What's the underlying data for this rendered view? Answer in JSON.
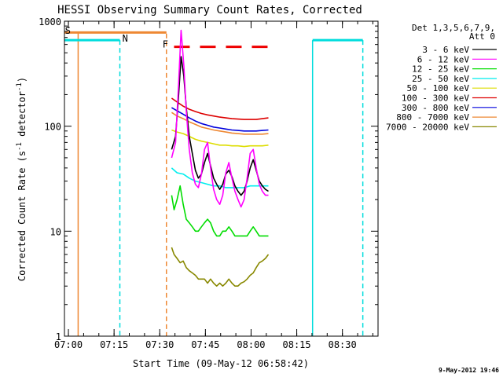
{
  "chart_data": {
    "type": "line",
    "title": "HESSI Observing Summary Count Rates, Corrected",
    "xlabel": "Start Time (09-May-12 06:58:42)",
    "ylabel": "Corrected Count Rate (s",
    "ylabel_sup1": "-1",
    "ylabel_mid": " detector",
    "ylabel_sup2": "-1",
    "ylabel_end": ")",
    "y_scale": "log",
    "ylim": [
      1,
      1000
    ],
    "xlim_minutes_after_0658_42": [
      0,
      103
    ],
    "x_ticks": [
      {
        "label": "07:00",
        "t": 1.3
      },
      {
        "label": "07:15",
        "t": 16.3
      },
      {
        "label": "07:30",
        "t": 31.3
      },
      {
        "label": "07:45",
        "t": 46.3
      },
      {
        "label": "08:00",
        "t": 61.3
      },
      {
        "label": "08:15",
        "t": 76.3
      },
      {
        "label": "08:30",
        "t": 91.3
      }
    ],
    "y_ticks": [
      {
        "label": "1",
        "v": 1
      },
      {
        "label": "10",
        "v": 10
      },
      {
        "label": "100",
        "v": 100
      },
      {
        "label": "1000",
        "v": 1000
      }
    ],
    "legend_title": [
      "Det 1,3,5,6,7,9,",
      "Att 0"
    ],
    "legend_placement": "right, outside plot",
    "series": [
      {
        "name": "3 - 6 keV",
        "color": "#000000",
        "points": [
          [
            35.2,
            60
          ],
          [
            36.5,
            80
          ],
          [
            37.5,
            200
          ],
          [
            38.3,
            460
          ],
          [
            39.2,
            300
          ],
          [
            40,
            150
          ],
          [
            41,
            80
          ],
          [
            42,
            55
          ],
          [
            43,
            38
          ],
          [
            44,
            32
          ],
          [
            45,
            35
          ],
          [
            46,
            45
          ],
          [
            47,
            55
          ],
          [
            48,
            42
          ],
          [
            49,
            32
          ],
          [
            50,
            28
          ],
          [
            51,
            25
          ],
          [
            52,
            28
          ],
          [
            53,
            35
          ],
          [
            54,
            38
          ],
          [
            55,
            33
          ],
          [
            56,
            27
          ],
          [
            57,
            24
          ],
          [
            58,
            22
          ],
          [
            59,
            24
          ],
          [
            60,
            30
          ],
          [
            61,
            40
          ],
          [
            62,
            48
          ],
          [
            63,
            38
          ],
          [
            64,
            30
          ],
          [
            65,
            27
          ],
          [
            66,
            25
          ],
          [
            67,
            24
          ]
        ]
      },
      {
        "name": "6 - 12 keV",
        "color": "#ff00ff",
        "points": [
          [
            35.2,
            50
          ],
          [
            36.5,
            70
          ],
          [
            37.5,
            260
          ],
          [
            38.3,
            820
          ],
          [
            39.2,
            380
          ],
          [
            40,
            140
          ],
          [
            41,
            60
          ],
          [
            42,
            36
          ],
          [
            43,
            28
          ],
          [
            44,
            26
          ],
          [
            45,
            35
          ],
          [
            46,
            60
          ],
          [
            47,
            70
          ],
          [
            48,
            40
          ],
          [
            49,
            25
          ],
          [
            50,
            20
          ],
          [
            51,
            18
          ],
          [
            52,
            22
          ],
          [
            53,
            36
          ],
          [
            54,
            45
          ],
          [
            55,
            32
          ],
          [
            56,
            24
          ],
          [
            57,
            20
          ],
          [
            58,
            17
          ],
          [
            59,
            20
          ],
          [
            60,
            32
          ],
          [
            61,
            55
          ],
          [
            62,
            60
          ],
          [
            63,
            40
          ],
          [
            64,
            28
          ],
          [
            65,
            24
          ],
          [
            66,
            22
          ],
          [
            67,
            22
          ]
        ]
      },
      {
        "name": "12 - 25 keV",
        "color": "#00dd00",
        "points": [
          [
            35.2,
            22
          ],
          [
            36,
            16
          ],
          [
            37,
            20
          ],
          [
            38,
            27
          ],
          [
            39,
            18
          ],
          [
            40,
            13
          ],
          [
            41,
            12
          ],
          [
            42,
            11
          ],
          [
            43,
            10
          ],
          [
            44,
            10
          ],
          [
            45,
            11
          ],
          [
            46,
            12
          ],
          [
            47,
            13
          ],
          [
            48,
            12
          ],
          [
            49,
            10
          ],
          [
            50,
            9
          ],
          [
            51,
            9
          ],
          [
            52,
            10
          ],
          [
            53,
            10
          ],
          [
            54,
            11
          ],
          [
            55,
            10
          ],
          [
            56,
            9
          ],
          [
            57,
            9
          ],
          [
            58,
            9
          ],
          [
            59,
            9
          ],
          [
            60,
            9
          ],
          [
            61,
            10
          ],
          [
            62,
            11
          ],
          [
            63,
            10
          ],
          [
            64,
            9
          ],
          [
            65,
            9
          ],
          [
            66,
            9
          ],
          [
            67,
            9
          ]
        ]
      },
      {
        "name": "25 - 50 keV",
        "color": "#00eeee",
        "points": [
          [
            35.2,
            40
          ],
          [
            37,
            36
          ],
          [
            39,
            35
          ],
          [
            41,
            32
          ],
          [
            43,
            30
          ],
          [
            45,
            29
          ],
          [
            47,
            28
          ],
          [
            49,
            27
          ],
          [
            51,
            27
          ],
          [
            53,
            26
          ],
          [
            55,
            26
          ],
          [
            57,
            26
          ],
          [
            59,
            26
          ],
          [
            61,
            27
          ],
          [
            63,
            27
          ],
          [
            65,
            27
          ],
          [
            67,
            27
          ]
        ]
      },
      {
        "name": "50 - 100 keV",
        "color": "#dddd00",
        "points": [
          [
            35.2,
            92
          ],
          [
            37,
            88
          ],
          [
            39,
            85
          ],
          [
            41,
            80
          ],
          [
            43,
            75
          ],
          [
            45,
            72
          ],
          [
            47,
            70
          ],
          [
            49,
            68
          ],
          [
            51,
            66
          ],
          [
            53,
            66
          ],
          [
            55,
            65
          ],
          [
            57,
            65
          ],
          [
            59,
            64
          ],
          [
            61,
            65
          ],
          [
            63,
            65
          ],
          [
            65,
            65
          ],
          [
            67,
            66
          ]
        ]
      },
      {
        "name": "100 - 300 keV",
        "color": "#dd0000",
        "points": [
          [
            35.2,
            185
          ],
          [
            37,
            170
          ],
          [
            39,
            155
          ],
          [
            41,
            145
          ],
          [
            43,
            138
          ],
          [
            45,
            132
          ],
          [
            47,
            128
          ],
          [
            49,
            125
          ],
          [
            51,
            122
          ],
          [
            53,
            120
          ],
          [
            55,
            118
          ],
          [
            57,
            117
          ],
          [
            59,
            116
          ],
          [
            61,
            116
          ],
          [
            63,
            116
          ],
          [
            65,
            118
          ],
          [
            67,
            120
          ]
        ]
      },
      {
        "name": "300 - 800 keV",
        "color": "#0000dd",
        "points": [
          [
            35.2,
            150
          ],
          [
            37,
            140
          ],
          [
            39,
            130
          ],
          [
            41,
            120
          ],
          [
            43,
            112
          ],
          [
            45,
            106
          ],
          [
            47,
            102
          ],
          [
            49,
            98
          ],
          [
            51,
            96
          ],
          [
            53,
            94
          ],
          [
            55,
            92
          ],
          [
            57,
            91
          ],
          [
            59,
            90
          ],
          [
            61,
            90
          ],
          [
            63,
            90
          ],
          [
            65,
            91
          ],
          [
            67,
            92
          ]
        ]
      },
      {
        "name": "800 - 7000 keV",
        "color": "#ee8833",
        "points": [
          [
            35.2,
            135
          ],
          [
            37,
            125
          ],
          [
            39,
            118
          ],
          [
            41,
            110
          ],
          [
            43,
            104
          ],
          [
            45,
            98
          ],
          [
            47,
            95
          ],
          [
            49,
            92
          ],
          [
            51,
            90
          ],
          [
            53,
            88
          ],
          [
            55,
            86
          ],
          [
            57,
            85
          ],
          [
            59,
            84
          ],
          [
            61,
            84
          ],
          [
            63,
            84
          ],
          [
            65,
            84
          ],
          [
            67,
            85
          ]
        ]
      },
      {
        "name": "7000 - 20000 keV",
        "color": "#888800",
        "points": [
          [
            35.2,
            7
          ],
          [
            36,
            6
          ],
          [
            37,
            5.5
          ],
          [
            38,
            5
          ],
          [
            39,
            5.2
          ],
          [
            40,
            4.5
          ],
          [
            41,
            4.2
          ],
          [
            42,
            4
          ],
          [
            43,
            3.8
          ],
          [
            44,
            3.5
          ],
          [
            45,
            3.5
          ],
          [
            46,
            3.5
          ],
          [
            47,
            3.2
          ],
          [
            48,
            3.5
          ],
          [
            49,
            3.2
          ],
          [
            50,
            3
          ],
          [
            51,
            3.2
          ],
          [
            52,
            3
          ],
          [
            53,
            3.2
          ],
          [
            54,
            3.5
          ],
          [
            55,
            3.2
          ],
          [
            56,
            3
          ],
          [
            57,
            3
          ],
          [
            58,
            3.2
          ],
          [
            59,
            3.3
          ],
          [
            60,
            3.5
          ],
          [
            61,
            3.8
          ],
          [
            62,
            4
          ],
          [
            63,
            4.5
          ],
          [
            64,
            5
          ],
          [
            65,
            5.2
          ],
          [
            66,
            5.5
          ],
          [
            67,
            6
          ]
        ]
      }
    ],
    "annotations": [
      {
        "text": "S",
        "color": "#ee8833"
      },
      {
        "text": "N",
        "color": "#00ccee"
      },
      {
        "text": "F",
        "color": "#ee8833"
      }
    ],
    "timestamp": "9-May-2012 19:46"
  }
}
